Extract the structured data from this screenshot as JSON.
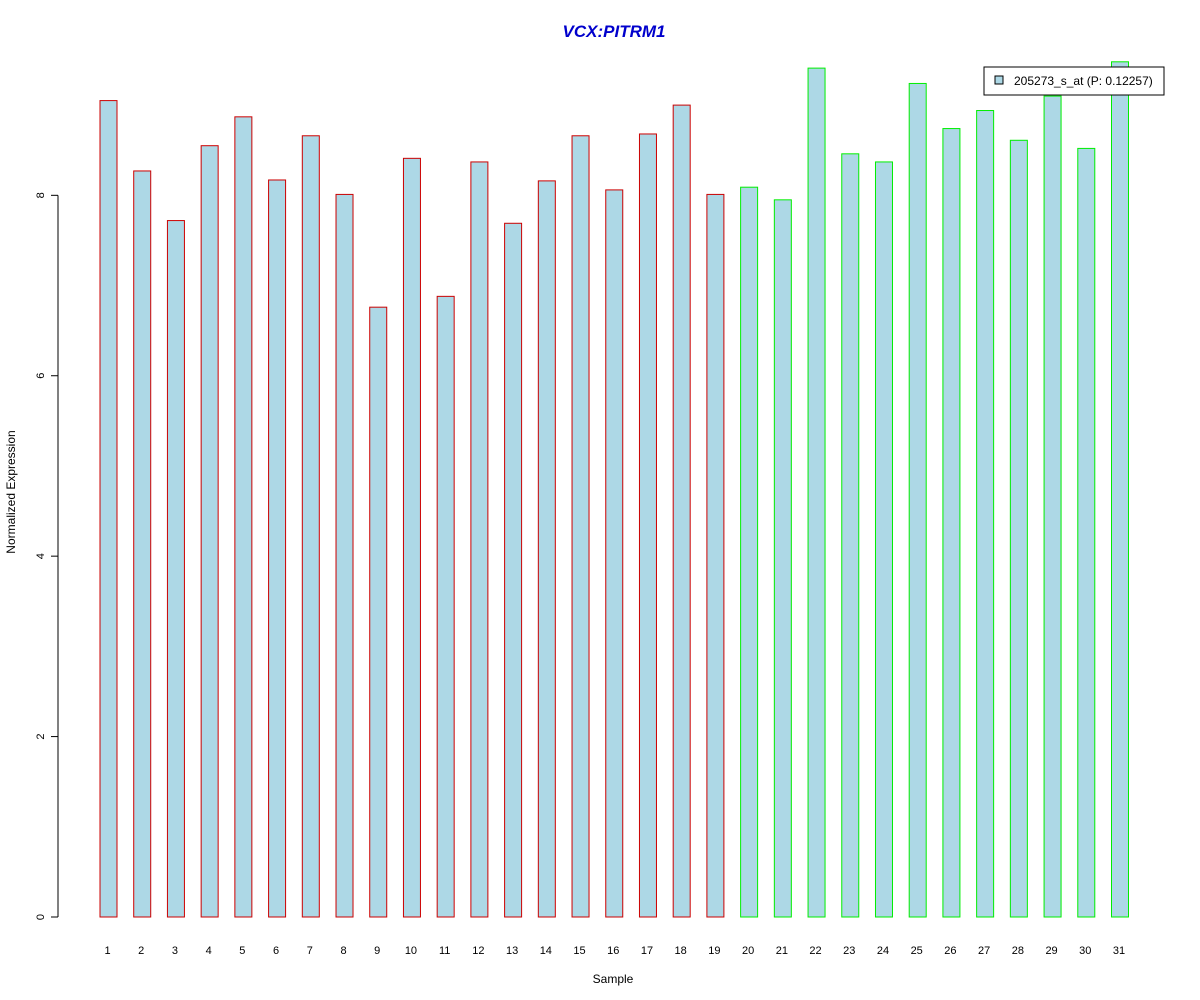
{
  "chart_data": {
    "type": "bar",
    "title": "VCX:PITRM1",
    "xlabel": "Sample",
    "ylabel": "Normalized Expression",
    "ylim": [
      0,
      9.5
    ],
    "y_ticks": [
      0,
      2,
      4,
      6,
      8
    ],
    "grid": false,
    "legend_position": "top-right",
    "categories": [
      "1",
      "2",
      "3",
      "4",
      "5",
      "6",
      "7",
      "8",
      "9",
      "10",
      "11",
      "12",
      "13",
      "14",
      "15",
      "16",
      "17",
      "18",
      "19",
      "20",
      "21",
      "22",
      "23",
      "24",
      "25",
      "26",
      "27",
      "28",
      "29",
      "30",
      "31"
    ],
    "series": [
      {
        "name": "205273_s_at (P: 0.12257)",
        "values": [
          9.05,
          8.27,
          7.72,
          8.55,
          8.87,
          8.17,
          8.66,
          8.01,
          6.76,
          8.41,
          6.88,
          8.37,
          7.69,
          8.16,
          8.66,
          8.06,
          8.68,
          9.0,
          8.01,
          8.09,
          7.95,
          9.41,
          8.46,
          8.37,
          9.24,
          8.74,
          8.94,
          8.61,
          9.1,
          8.52,
          9.48
        ]
      }
    ],
    "group_borders": [
      "#CC0000",
      "#CC0000",
      "#CC0000",
      "#CC0000",
      "#CC0000",
      "#CC0000",
      "#CC0000",
      "#CC0000",
      "#CC0000",
      "#CC0000",
      "#CC0000",
      "#CC0000",
      "#CC0000",
      "#CC0000",
      "#CC0000",
      "#CC0000",
      "#CC0000",
      "#CC0000",
      "#CC0000",
      "#00EE00",
      "#00EE00",
      "#00EE00",
      "#00EE00",
      "#00EE00",
      "#00EE00",
      "#00EE00",
      "#00EE00",
      "#00EE00",
      "#00EE00",
      "#00EE00",
      "#00EE00"
    ],
    "colors": {
      "bar_fill": "#ADD8E6",
      "title": "#0000CC",
      "axis": "#000000"
    }
  }
}
